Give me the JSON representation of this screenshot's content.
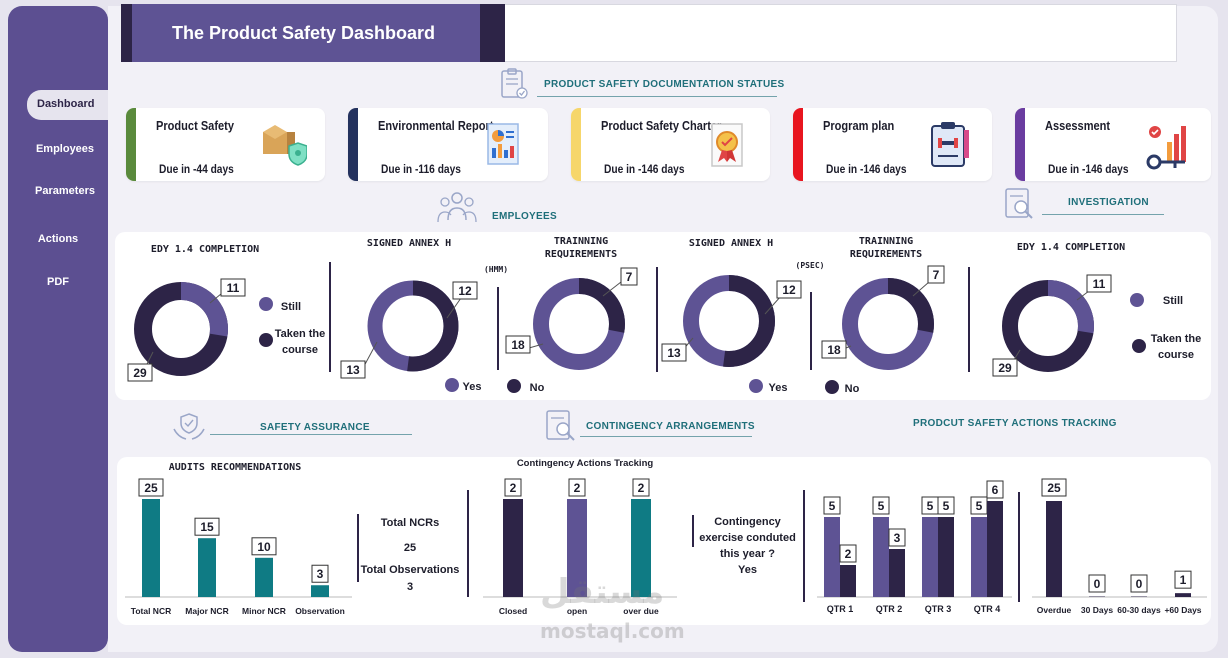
{
  "header": {
    "title": "The Product Safety Dashboard"
  },
  "sidebar": {
    "items": [
      {
        "label": "Dashboard"
      },
      {
        "label": "Employees"
      },
      {
        "label": "Parameters"
      },
      {
        "label": "Actions"
      },
      {
        "label": "PDF"
      }
    ]
  },
  "sections": {
    "documentation": "PRODUCT SAFETY DOCUMENTATION STATUES",
    "employees": "EMPLOYEES",
    "investigation": "INVESTIGATION",
    "safety_assurance": "SAFETY ASSURANCE",
    "contingency": "CONTINGENCY ARRANGEMENTS",
    "tracking": "PRODCUT SAFETY ACTIONS TRACKING"
  },
  "cards": [
    {
      "title": "Product Safety",
      "due": "Due in -44 days",
      "color": "#5a8a3c",
      "icon": "package-shield-icon"
    },
    {
      "title": "Environmental Report",
      "due": "Due in -116 days",
      "color": "#24325e",
      "icon": "report-chart-icon"
    },
    {
      "title": "Product Safety Charter",
      "due": "Due in -146 days",
      "color": "#f6d66b",
      "icon": "certificate-icon"
    },
    {
      "title": "Program plan",
      "due": "Due in -146 days",
      "color": "#e8151f",
      "icon": "clipboard-icon"
    },
    {
      "title": "Assessment",
      "due": "Due in -146 days",
      "color": "#6a3ca0",
      "icon": "key-chart-icon"
    }
  ],
  "employees": {
    "edy1": {
      "title": "EDY 1.4  COMPLETION",
      "still": 11,
      "taken": 29,
      "legend_still": "Still",
      "legend_taken_1": "Taken the",
      "legend_taken_2": "course"
    },
    "annex_hmm": {
      "title": "SIGNED ANNEX H",
      "tag": "(HMM)",
      "yes": 13,
      "no": 12
    },
    "train_hmm": {
      "title_1": "TRAINNING",
      "title_2": "REQUIREMENTS",
      "yes": 18,
      "no": 7
    },
    "annex_psec": {
      "title": "SIGNED ANNEX H",
      "tag": "(PSEC)",
      "yes": 13,
      "no": 12
    },
    "train_psec": {
      "title_1": "TRAINNING",
      "title_2": "REQUIREMENTS",
      "yes": 18,
      "no": 7
    },
    "edy2": {
      "title": "EDY 1.4  COMPLETION",
      "still": 11,
      "taken": 29,
      "legend_still": "Still",
      "legend_taken_1": "Taken the",
      "legend_taken_2": "course"
    },
    "legend_yes": "Yes",
    "legend_no": "No",
    "colors": {
      "light": "#5e5394",
      "dark": "#2d2447"
    }
  },
  "audits": {
    "title": "AUDITS RECOMMENDATIONS",
    "color": "#0f7b84",
    "categories": [
      "Total NCR",
      "Major NCR",
      "Minor NCR",
      "Observation"
    ],
    "values": [
      25,
      15,
      10,
      3
    ]
  },
  "totals": {
    "ncr_label": "Total NCRs",
    "ncr_value": "25",
    "obs_label": "Total Observations",
    "obs_value": "3"
  },
  "contingency_tracking": {
    "title": "Contingency Actions Tracking",
    "categories": [
      "Closed",
      "open",
      "over due"
    ],
    "values": [
      2,
      2,
      2
    ],
    "colors": [
      "#2d2447",
      "#5e5394",
      "#0f7b84"
    ]
  },
  "exercise": {
    "q1": "Contingency",
    "q2": "exercise conduted",
    "q3": "this year ?",
    "answer": "Yes"
  },
  "quarters": {
    "categories": [
      "QTR 1",
      "QTR 2",
      "QTR 3",
      "QTR 4"
    ],
    "series": [
      {
        "values": [
          5,
          5,
          5,
          5
        ],
        "color": "#5e5394"
      },
      {
        "values": [
          2,
          3,
          5,
          6
        ],
        "color": "#2d2447"
      }
    ]
  },
  "overdue": {
    "categories": [
      "Overdue",
      "30 Days",
      "60-30 days",
      "+60 Days"
    ],
    "values": [
      25,
      0,
      0,
      1
    ],
    "color": "#2d2447"
  },
  "watermark": {
    "arabic": "مستقل",
    "latin": "mostaql.com"
  },
  "chart_data": [
    {
      "type": "pie",
      "title": "EDY 1.4  COMPLETION",
      "categories": [
        "Still",
        "Taken the course"
      ],
      "values": [
        11,
        29
      ]
    },
    {
      "type": "pie",
      "title": "SIGNED ANNEX H",
      "categories": [
        "Yes",
        "No"
      ],
      "values": [
        13,
        12
      ]
    },
    {
      "type": "pie",
      "title": "TRAINNING REQUIREMENTS",
      "categories": [
        "Yes",
        "No"
      ],
      "values": [
        18,
        7
      ]
    },
    {
      "type": "pie",
      "title": "SIGNED ANNEX H",
      "categories": [
        "Yes",
        "No"
      ],
      "values": [
        13,
        12
      ]
    },
    {
      "type": "pie",
      "title": "TRAINNING REQUIREMENTS",
      "categories": [
        "Yes",
        "No"
      ],
      "values": [
        18,
        7
      ]
    },
    {
      "type": "pie",
      "title": "EDY 1.4  COMPLETION",
      "categories": [
        "Still",
        "Taken the course"
      ],
      "values": [
        11,
        29
      ]
    },
    {
      "type": "bar",
      "title": "AUDITS RECOMMENDATIONS",
      "categories": [
        "Total NCR",
        "Major NCR",
        "Minor NCR",
        "Observation"
      ],
      "values": [
        25,
        15,
        10,
        3
      ]
    },
    {
      "type": "bar",
      "title": "Contingency Actions Tracking",
      "categories": [
        "Closed",
        "open",
        "over due"
      ],
      "values": [
        2,
        2,
        2
      ]
    },
    {
      "type": "bar",
      "categories": [
        "QTR 1",
        "QTR 2",
        "QTR 3",
        "QTR 4"
      ],
      "series": [
        {
          "values": [
            5,
            5,
            5,
            5
          ]
        },
        {
          "values": [
            2,
            3,
            5,
            6
          ]
        }
      ]
    },
    {
      "type": "bar",
      "categories": [
        "Overdue",
        "30 Days",
        "60-30 days",
        "+60 Days"
      ],
      "values": [
        25,
        0,
        0,
        1
      ]
    }
  ]
}
